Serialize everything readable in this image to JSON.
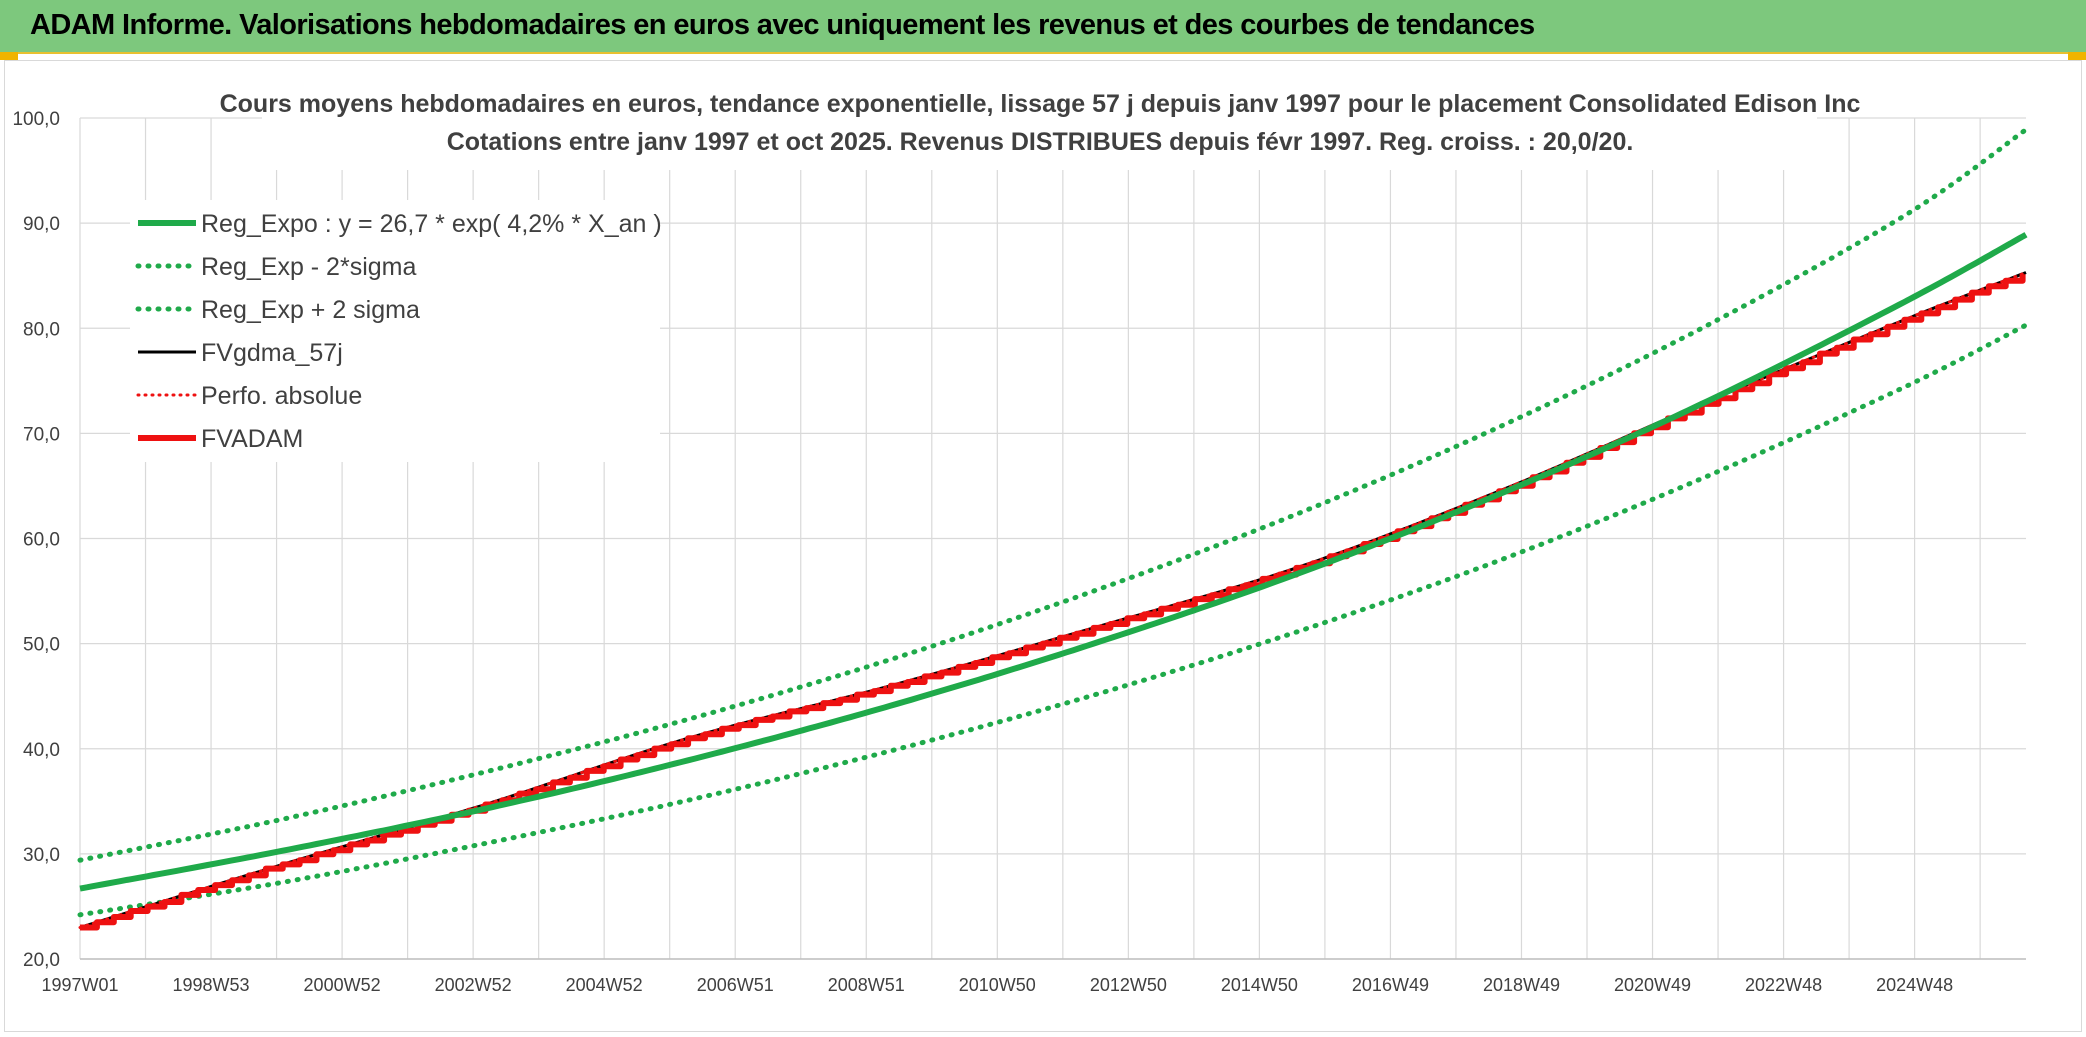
{
  "banner": {
    "title": "ADAM Informe. Valorisations hebdomadaires en euros avec uniquement les revenus et des courbes de tendances"
  },
  "colors": {
    "banner_bg": "#7dc87d",
    "green": "#1faa4a",
    "red": "#ee1111",
    "black": "#000000",
    "grid": "#d9d9d9"
  },
  "chart_data": {
    "type": "line",
    "title_lines": [
      "Cours moyens hebdomadaires en euros, tendance exponentielle, lissage 57 j depuis janv 1997 pour le placement Consolidated Edison Inc",
      "Cotations entre janv 1997 et oct 2025. Revenus DISTRIBUES depuis févr 1997. Reg. croiss. : 20,0/20."
    ],
    "ylim": [
      20,
      100
    ],
    "y_ticks": [
      "20,0",
      "30,0",
      "40,0",
      "50,0",
      "60,0",
      "70,0",
      "80,0",
      "90,0",
      "100,0"
    ],
    "x_range": [
      1997.0,
      2025.8
    ],
    "x_ticks": [
      "1997W01",
      "1998W53",
      "2000W52",
      "2002W52",
      "2004W52",
      "2006W51",
      "2008W51",
      "2010W50",
      "2012W50",
      "2014W50",
      "2016W49",
      "2018W49",
      "2020W49",
      "2022W48",
      "2024W48"
    ],
    "legend": [
      {
        "label": "Reg_Expo : y = 26,7 * exp( 4,2% *  X_an )",
        "style": "green-solid"
      },
      {
        "label": "Reg_Exp - 2*sigma",
        "style": "green-dotted"
      },
      {
        "label": "Reg_Exp + 2 sigma",
        "style": "green-dotted"
      },
      {
        "label": "FVgdma_57j",
        "style": "black-solid"
      },
      {
        "label": "Perfo. absolue",
        "style": "red-dotted"
      },
      {
        "label": "FVADAM",
        "style": "red-solid"
      }
    ],
    "series": [
      {
        "name": "Reg_Expo",
        "x": [
          1997,
          2000,
          2003,
          2006,
          2009,
          2012,
          2015,
          2018,
          2021,
          2024,
          2025.8
        ],
        "values": [
          26.7,
          30.3,
          34.3,
          38.9,
          44.1,
          50.0,
          56.6,
          64.2,
          72.8,
          82.5,
          88.9
        ]
      },
      {
        "name": "Reg_Exp - 2*sigma",
        "x": [
          1997,
          2000,
          2003,
          2006,
          2009,
          2012,
          2015,
          2018,
          2021,
          2024,
          2025.8
        ],
        "values": [
          24.2,
          27.3,
          31.0,
          35.1,
          39.8,
          45.1,
          51.1,
          57.9,
          65.7,
          74.4,
          80.3
        ]
      },
      {
        "name": "Reg_Exp + 2 sigma",
        "x": [
          1997,
          2000,
          2003,
          2006,
          2009,
          2012,
          2015,
          2018,
          2021,
          2024,
          2025.8
        ],
        "values": [
          29.4,
          33.3,
          37.8,
          42.8,
          48.5,
          55.0,
          62.3,
          70.6,
          80.0,
          90.7,
          98.9
        ]
      },
      {
        "name": "FVgdma_57j",
        "x": [
          1997,
          2000,
          2003,
          2006,
          2009,
          2012,
          2015,
          2018,
          2021,
          2024,
          2025.8
        ],
        "values": [
          23.0,
          29.0,
          34.7,
          41.0,
          46.0,
          51.5,
          57.2,
          64.5,
          72.8,
          80.8,
          85.3
        ]
      },
      {
        "name": "Perfo. absolue",
        "x": [
          1997,
          2000,
          2003,
          2006,
          2009,
          2012,
          2015,
          2018,
          2021,
          2024,
          2025.8
        ],
        "values": [
          23.0,
          29.0,
          34.7,
          41.0,
          46.0,
          51.5,
          57.2,
          64.5,
          72.8,
          80.8,
          85.3
        ]
      },
      {
        "name": "FVADAM",
        "x": [
          1997,
          2000,
          2003,
          2006,
          2009,
          2012,
          2015,
          2018,
          2021,
          2024,
          2025.8
        ],
        "values": [
          23.0,
          29.0,
          34.7,
          41.0,
          46.0,
          51.5,
          57.2,
          64.5,
          72.8,
          80.8,
          85.3
        ]
      }
    ]
  }
}
